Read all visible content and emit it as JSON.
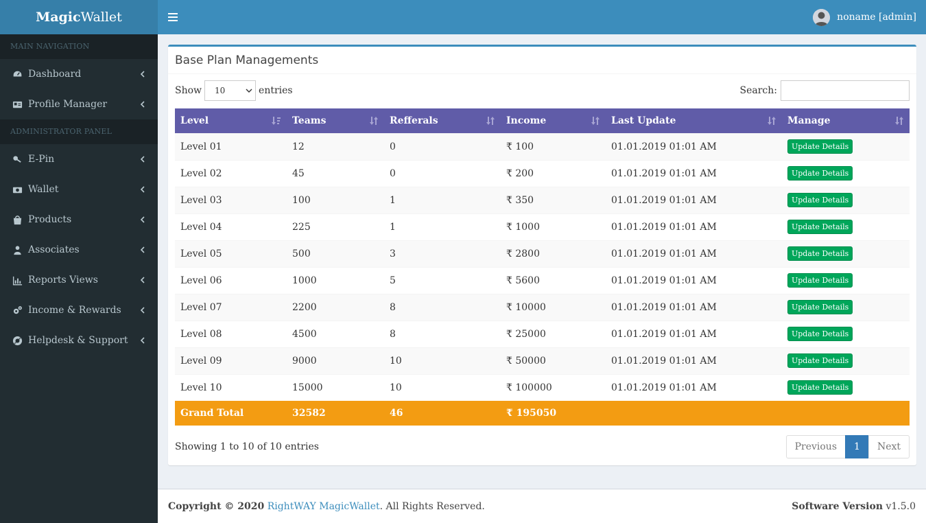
{
  "app": {
    "logo_bold": "Magic",
    "logo_rest": "Wallet"
  },
  "sidebar": {
    "main_header": "MAIN NAVIGATION",
    "admin_header": "ADMINISTRATOR PANEL",
    "main_items": [
      {
        "label": "Dashboard",
        "icon": "dashboard-icon"
      },
      {
        "label": "Profile Manager",
        "icon": "id-card-icon"
      }
    ],
    "admin_items": [
      {
        "label": "E-Pin",
        "icon": "key-icon"
      },
      {
        "label": "Wallet",
        "icon": "money-icon"
      },
      {
        "label": "Products",
        "icon": "shopping-bag-icon"
      },
      {
        "label": "Associates",
        "icon": "user-icon"
      },
      {
        "label": "Reports Views",
        "icon": "bar-chart-icon"
      },
      {
        "label": "Income & Rewards",
        "icon": "cogs-icon"
      },
      {
        "label": "Helpdesk & Support",
        "icon": "life-ring-icon"
      }
    ]
  },
  "header": {
    "user_label": "noname [admin]"
  },
  "box": {
    "title": "Base Plan Managements"
  },
  "controls": {
    "show_label": "Show",
    "entries_label": "entries",
    "length_value": "10",
    "search_label": "Search:"
  },
  "table": {
    "columns": [
      "Level",
      "Teams",
      "Refferals",
      "Income",
      "Last Update",
      "Manage"
    ],
    "rows": [
      {
        "level": "Level 01",
        "teams": "12",
        "refferals": "0",
        "income": "₹ 100",
        "last_update": "01.01.2019 01:01 AM",
        "action": "Update Details"
      },
      {
        "level": "Level 02",
        "teams": "45",
        "refferals": "0",
        "income": "₹ 200",
        "last_update": "01.01.2019 01:01 AM",
        "action": "Update Details"
      },
      {
        "level": "Level 03",
        "teams": "100",
        "refferals": "1",
        "income": "₹ 350",
        "last_update": "01.01.2019 01:01 AM",
        "action": "Update Details"
      },
      {
        "level": "Level 04",
        "teams": "225",
        "refferals": "1",
        "income": "₹ 1000",
        "last_update": "01.01.2019 01:01 AM",
        "action": "Update Details"
      },
      {
        "level": "Level 05",
        "teams": "500",
        "refferals": "3",
        "income": "₹ 2800",
        "last_update": "01.01.2019 01:01 AM",
        "action": "Update Details"
      },
      {
        "level": "Level 06",
        "teams": "1000",
        "refferals": "5",
        "income": "₹ 5600",
        "last_update": "01.01.2019 01:01 AM",
        "action": "Update Details"
      },
      {
        "level": "Level 07",
        "teams": "2200",
        "refferals": "8",
        "income": "₹ 10000",
        "last_update": "01.01.2019 01:01 AM",
        "action": "Update Details"
      },
      {
        "level": "Level 08",
        "teams": "4500",
        "refferals": "8",
        "income": "₹ 25000",
        "last_update": "01.01.2019 01:01 AM",
        "action": "Update Details"
      },
      {
        "level": "Level 09",
        "teams": "9000",
        "refferals": "10",
        "income": "₹ 50000",
        "last_update": "01.01.2019 01:01 AM",
        "action": "Update Details"
      },
      {
        "level": "Level 10",
        "teams": "15000",
        "refferals": "10",
        "income": "₹ 100000",
        "last_update": "01.01.2019 01:01 AM",
        "action": "Update Details"
      }
    ],
    "total": {
      "label": "Grand Total",
      "teams": "32582",
      "refferals": "46",
      "income": "₹ 195050"
    }
  },
  "pagination": {
    "info": "Showing 1 to 10 of 10 entries",
    "previous": "Previous",
    "page": "1",
    "next": "Next"
  },
  "footer": {
    "copyright_prefix": "Copyright © 2020",
    "company": "RightWAY MagicWallet",
    "suffix": ". All Rights Reserved.",
    "version_label": "Software Version",
    "version": "v1.5.0"
  },
  "colors": {
    "header": "#3c8dbc",
    "logo_bg": "#367fa9",
    "sidebar": "#222d32",
    "table_header": "#605ca8",
    "total_row": "#f39c12",
    "button": "#00a65a"
  }
}
